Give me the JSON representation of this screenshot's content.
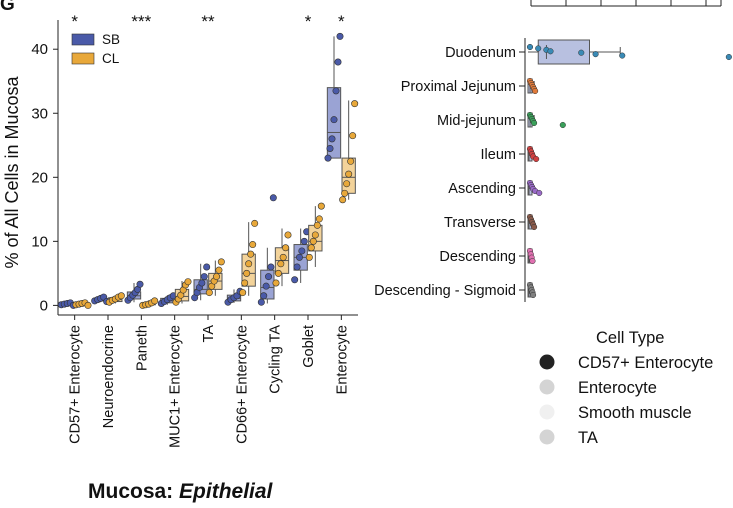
{
  "panel_label": "G",
  "bottom_title": {
    "main": "Mucosa:",
    "italic": "Epithelial"
  },
  "colors": {
    "sb": "#4a5aa8",
    "cl": "#e8a83a",
    "sb_box": "#9aa3d4",
    "cl_box": "#f3d39a"
  },
  "chart_data": [
    {
      "type": "box",
      "title": "",
      "ylabel": "% of All Cells in Mucosa",
      "xlabel": "",
      "ylim": [
        -1.5,
        43
      ],
      "yticks": [
        0,
        10,
        20,
        30,
        40
      ],
      "legend": {
        "placement": "top-left",
        "entries": [
          {
            "name": "SB",
            "color": "#4a5aa8"
          },
          {
            "name": "CL",
            "color": "#e8a83a"
          }
        ]
      },
      "categories": [
        "CD57+ Enterocyte",
        "Neuroendocrine",
        "Paneth",
        "MUC1+ Enterocyte",
        "TA",
        "CD66+ Enterocyte",
        "Cycling TA",
        "Goblet",
        "Enterocyte"
      ],
      "significance": [
        "*",
        "",
        "***",
        "",
        "**",
        "",
        "",
        "*",
        "*"
      ],
      "series": [
        {
          "name": "SB",
          "boxes": [
            {
              "q1": 0.1,
              "median": 0.2,
              "q3": 0.4,
              "low": 0.0,
              "high": 0.6
            },
            {
              "q1": 0.7,
              "median": 0.9,
              "q3": 1.1,
              "low": 0.5,
              "high": 1.4
            },
            {
              "q1": 1.0,
              "median": 1.5,
              "q3": 2.1,
              "low": 0.5,
              "high": 3.5
            },
            {
              "q1": 0.4,
              "median": 0.7,
              "q3": 1.1,
              "low": 0.1,
              "high": 1.6
            },
            {
              "q1": 1.8,
              "median": 2.5,
              "q3": 4.0,
              "low": 0.8,
              "high": 6.5
            },
            {
              "q1": 0.7,
              "median": 1.1,
              "q3": 1.6,
              "low": 0.4,
              "high": 2.5
            },
            {
              "q1": 1.0,
              "median": 2.8,
              "q3": 5.5,
              "low": 0.3,
              "high": 9.0
            },
            {
              "q1": 5.5,
              "median": 7.5,
              "q3": 9.5,
              "low": 3.5,
              "high": 12.0
            },
            {
              "q1": 23.0,
              "median": 27.0,
              "q3": 34.0,
              "low": 23.0,
              "high": 42.0
            }
          ],
          "points": [
            [
              0.1,
              0.2,
              0.3,
              0.4,
              0.0
            ],
            [
              0.7,
              0.9,
              1.1,
              1.3,
              0.6
            ],
            [
              0.8,
              1.2,
              1.6,
              2.0,
              2.5,
              3.3
            ],
            [
              0.3,
              0.6,
              0.9,
              1.2,
              1.5
            ],
            [
              1.2,
              2.0,
              2.8,
              3.5,
              4.5,
              6.0
            ],
            [
              0.5,
              0.9,
              1.2,
              1.5,
              2.2
            ],
            [
              0.5,
              1.5,
              3.0,
              4.5,
              6.0,
              16.8
            ],
            [
              4.0,
              6.0,
              7.5,
              8.5,
              10.0,
              11.5
            ],
            [
              23.0,
              24.5,
              26.0,
              29.0,
              33.5,
              38.0,
              42.0
            ]
          ]
        },
        {
          "name": "CL",
          "boxes": [
            {
              "q1": 0.1,
              "median": 0.2,
              "q3": 0.4,
              "low": 0.0,
              "high": 0.6
            },
            {
              "q1": 0.6,
              "median": 0.9,
              "q3": 1.2,
              "low": 0.3,
              "high": 1.5
            },
            {
              "q1": 0.1,
              "median": 0.2,
              "q3": 0.4,
              "low": 0.0,
              "high": 0.8
            },
            {
              "q1": 0.7,
              "median": 1.4,
              "q3": 2.5,
              "low": 0.3,
              "high": 3.8
            },
            {
              "q1": 2.5,
              "median": 3.8,
              "q3": 5.0,
              "low": 1.5,
              "high": 7.0
            },
            {
              "q1": 3.0,
              "median": 5.0,
              "q3": 8.0,
              "low": 1.5,
              "high": 13.0
            },
            {
              "q1": 5.0,
              "median": 7.0,
              "q3": 9.0,
              "low": 3.0,
              "high": 12.0
            },
            {
              "q1": 8.5,
              "median": 10.0,
              "q3": 12.5,
              "low": 6.0,
              "high": 15.5
            },
            {
              "q1": 17.5,
              "median": 20.0,
              "q3": 23.0,
              "low": 16.5,
              "high": 32.0
            }
          ],
          "points": [
            [
              0.1,
              0.2,
              0.3,
              0.4,
              0.0
            ],
            [
              0.5,
              0.8,
              1.0,
              1.3,
              1.5
            ],
            [
              0.0,
              0.1,
              0.2,
              0.4,
              0.7
            ],
            [
              0.5,
              1.0,
              1.6,
              2.4,
              3.2,
              3.7
            ],
            [
              2.0,
              3.0,
              3.8,
              4.5,
              5.5,
              6.8
            ],
            [
              2.0,
              3.5,
              5.0,
              6.5,
              8.0,
              9.5,
              12.8
            ],
            [
              3.5,
              5.0,
              6.5,
              7.5,
              9.0,
              11.0
            ],
            [
              7.5,
              9.0,
              10.0,
              11.0,
              12.5,
              13.5,
              15.5
            ],
            [
              16.5,
              17.5,
              19.0,
              20.5,
              22.5,
              26.5,
              31.5
            ]
          ]
        }
      ]
    },
    {
      "type": "box",
      "orientation": "horizontal",
      "title": "",
      "categories": [
        "Duodenum",
        "Proximal Jejunum",
        "Mid-jejunum",
        "Ileum",
        "Ascending",
        "Transverse",
        "Descending",
        "Descending - Sigmoid"
      ],
      "xlim": [
        0,
        1
      ],
      "box_color": "#b8c0e0",
      "boxes": [
        {
          "q1": 0.05,
          "median": 0.09,
          "q3": 0.3,
          "low": 0.0,
          "high": 0.45
        },
        {
          "q1": 0.0,
          "median": 0.01,
          "q3": 0.02,
          "low": 0.0,
          "high": 0.03
        },
        {
          "q1": 0.0,
          "median": 0.01,
          "q3": 0.02,
          "low": 0.0,
          "high": 0.03
        },
        {
          "q1": 0.0,
          "median": 0.005,
          "q3": 0.01,
          "low": 0.0,
          "high": 0.015
        },
        {
          "q1": 0.0,
          "median": 0.005,
          "q3": 0.01,
          "low": 0.0,
          "high": 0.02
        },
        {
          "q1": 0.0,
          "median": 0.005,
          "q3": 0.01,
          "low": 0.0,
          "high": 0.015
        },
        {
          "q1": 0.0,
          "median": 0.005,
          "q3": 0.01,
          "low": 0.0,
          "high": 0.012
        },
        {
          "q1": 0.0,
          "median": 0.005,
          "q3": 0.01,
          "low": 0.0,
          "high": 0.015
        }
      ],
      "point_groups": [
        {
          "color": "#3a8ab5",
          "values": [
            0.0,
            0.04,
            0.08,
            0.1,
            0.25,
            0.32,
            0.45,
            0.97
          ]
        },
        {
          "color": "#e07a3a",
          "values": [
            0.0,
            0.005,
            0.01,
            0.015,
            0.02,
            0.025
          ]
        },
        {
          "color": "#3aa05a",
          "values": [
            0.0,
            0.005,
            0.01,
            0.015,
            0.02,
            0.16
          ]
        },
        {
          "color": "#d04040",
          "values": [
            0.0,
            0.005,
            0.01,
            0.015,
            0.03
          ]
        },
        {
          "color": "#9a6ac8",
          "values": [
            0.0,
            0.005,
            0.01,
            0.015,
            0.025,
            0.045
          ]
        },
        {
          "color": "#8a5a4a",
          "values": [
            0.0,
            0.005,
            0.01,
            0.015,
            0.02
          ]
        },
        {
          "color": "#e070b0",
          "values": [
            0.0,
            0.004,
            0.008,
            0.012
          ]
        },
        {
          "color": "#808080",
          "values": [
            0.0,
            0.004,
            0.008,
            0.012,
            0.015
          ]
        }
      ],
      "legend": {
        "title": "Cell Type",
        "entries": [
          {
            "name": "CD57+ Enterocyte",
            "color": "#222222"
          },
          {
            "name": "Enterocyte",
            "color": "#d4d4d4"
          },
          {
            "name": "Smooth muscle",
            "color": "#f0f0f0"
          },
          {
            "name": "TA",
            "color": "#d4d4d4"
          }
        ]
      }
    }
  ]
}
